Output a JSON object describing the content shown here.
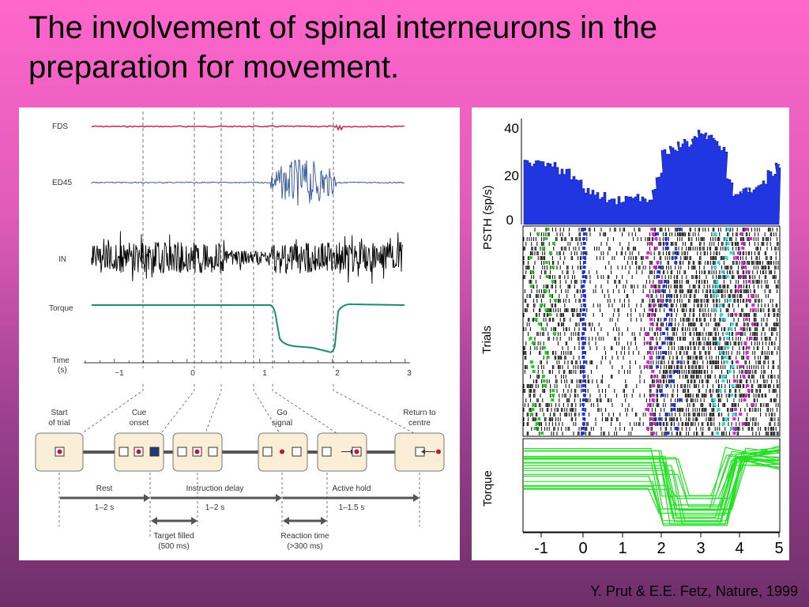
{
  "slide": {
    "title": "The involvement of spinal interneurons in the preparation for movement.",
    "citation": "Y. Prut & E.E. Fetz, Nature, 1999"
  },
  "left_figure": {
    "channels": [
      "FDS",
      "ED45",
      "IN",
      "Torque"
    ],
    "time_axis": {
      "label_line1": "Time",
      "label_line2": "(s)",
      "ticks": [
        "−1",
        "0",
        "1",
        "2",
        "3"
      ]
    },
    "events": [
      {
        "line1": "Start",
        "line2": "of trial"
      },
      {
        "line1": "Cue",
        "line2": "onset"
      },
      {
        "line1": "Go",
        "line2": "signal"
      },
      {
        "line1": "Return to",
        "line2": "centre"
      }
    ],
    "phases": [
      {
        "label": "Rest",
        "duration": "1–2 s"
      },
      {
        "label": "Instruction delay",
        "duration": "1–2 s"
      },
      {
        "label": "Active hold",
        "duration": "1–1.5 s"
      }
    ],
    "sub_intervals": [
      {
        "line1": "Target filled",
        "line2": "(500 ms)"
      },
      {
        "line1": "Reaction time",
        "line2": "(>300 ms)"
      }
    ]
  },
  "right_figure": {
    "psth": {
      "ylabel": "PSTH (sp/s)",
      "yticks": [
        "40",
        "20",
        "0"
      ]
    },
    "raster": {
      "ylabel": "Trials"
    },
    "torque": {
      "ylabel": "Torque"
    },
    "xticks": [
      "-1",
      "0",
      "1",
      "2",
      "3",
      "4",
      "5"
    ]
  },
  "colors": {
    "psth_fill": "#1f36e0",
    "torque_traces": "#22e022",
    "fds": "#c8264e",
    "ed45": "#2c4f9a",
    "torque_left": "#1d8a74"
  }
}
